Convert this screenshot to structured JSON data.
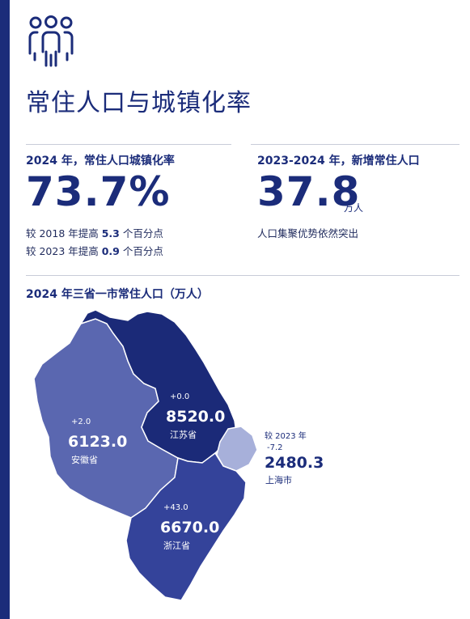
{
  "header": {
    "icon": "people-group-icon",
    "title": "常住人口与城镇化率"
  },
  "stats": {
    "urbanization": {
      "heading": "2024 年，常住人口城镇化率",
      "value": "73.7%",
      "line1": {
        "prefix": "较 2018 年提高 ",
        "highlight": "5.3",
        "suffix": " 个百分点"
      },
      "line2": {
        "prefix": "较 2023 年提高 ",
        "highlight": "0.9",
        "suffix": " 个百分点"
      }
    },
    "new_population": {
      "heading": "2023-2024 年，新增常住人口",
      "value": "37.8",
      "unit": "万人",
      "note": "人口集聚优势依然突出"
    }
  },
  "map": {
    "title": "2024 年三省一市常住人口（万人）",
    "regions": [
      {
        "id": "jiangsu",
        "name": "江苏省",
        "value": "8520.0",
        "change": "+0.0",
        "color": "#1b2a78"
      },
      {
        "id": "anhui",
        "name": "安徽省",
        "value": "6123.0",
        "change": "+2.0",
        "color": "#5a67b0"
      },
      {
        "id": "zhejiang",
        "name": "浙江省",
        "value": "6670.0",
        "change": "+43.0",
        "color": "#34439a"
      },
      {
        "id": "shanghai",
        "name": "上海市",
        "value": "2480.3",
        "change_label": "较 2023 年",
        "change": "-7.2",
        "color": "#a7b0da"
      }
    ]
  },
  "colors": {
    "brand": "#1b2c7a",
    "divider": "#c8ccd8"
  }
}
